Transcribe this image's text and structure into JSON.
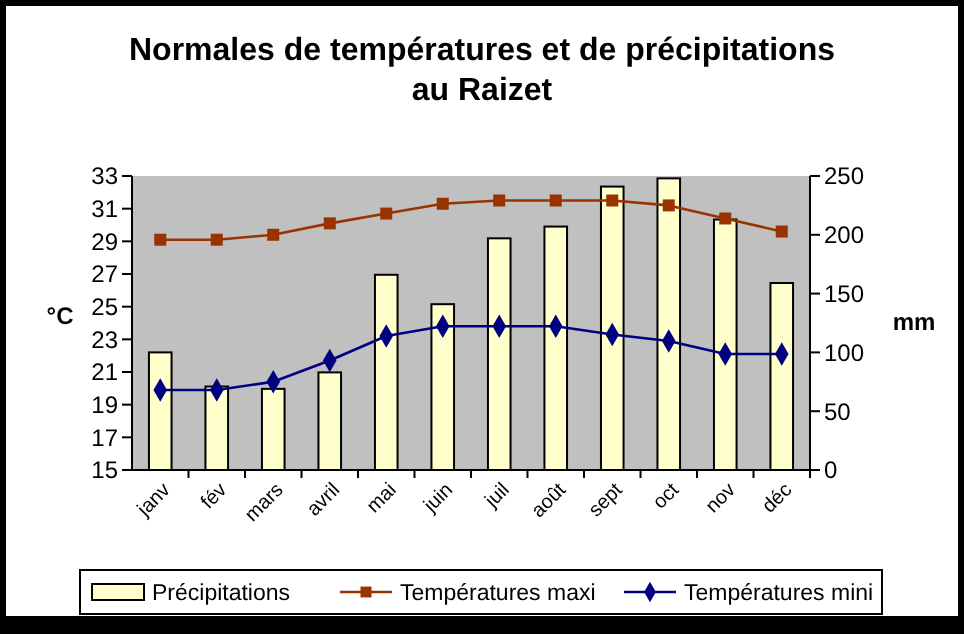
{
  "chart_data": {
    "type": "bar",
    "title": "Normales de températures et de précipitations\nau Raizet",
    "categories": [
      "janv",
      "fév",
      "mars",
      "avril",
      "mai",
      "juin",
      "juil",
      "août",
      "sept",
      "oct",
      "nov",
      "déc"
    ],
    "series": [
      {
        "name": "Précipitations",
        "axis": "y2",
        "color": "#ffffcc",
        "values": [
          100,
          71,
          69,
          83,
          166,
          141,
          197,
          207,
          241,
          248,
          213,
          159
        ]
      },
      {
        "name": "Températures maxi",
        "type": "line",
        "axis": "y",
        "marker": "square",
        "color": "#993300",
        "values": [
          29.1,
          29.1,
          29.4,
          30.1,
          30.7,
          31.3,
          31.5,
          31.5,
          31.5,
          31.2,
          30.4,
          29.6
        ]
      },
      {
        "name": "Températures mini",
        "type": "line",
        "axis": "y",
        "marker": "diamond",
        "color": "#000080",
        "values": [
          19.9,
          19.9,
          20.4,
          21.7,
          23.2,
          23.8,
          23.8,
          23.8,
          23.3,
          22.9,
          22.1,
          22.1
        ]
      }
    ],
    "ylabel": "°C",
    "y2label": "mm",
    "ylim": [
      15,
      33
    ],
    "yticks": [
      15,
      17,
      19,
      21,
      23,
      25,
      27,
      29,
      31,
      33
    ],
    "y2lim": [
      0,
      250
    ],
    "y2ticks": [
      0,
      50,
      100,
      150,
      200,
      250
    ],
    "legend": "bottom",
    "grid": false
  }
}
